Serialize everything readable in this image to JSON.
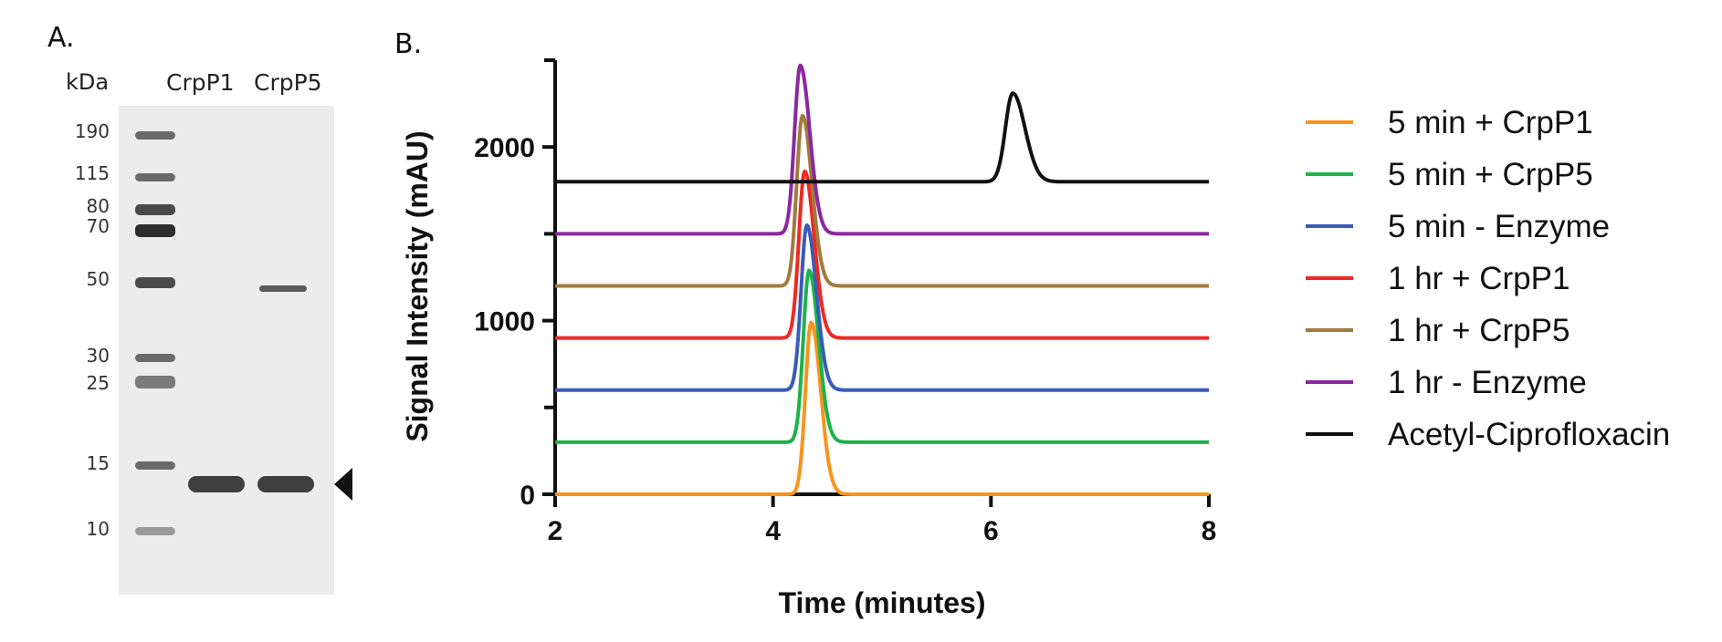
{
  "panel_a": {
    "label": "A.",
    "kda_label": "kDa",
    "lanes": [
      "CrpP1",
      "CrpP5"
    ],
    "ladder": [
      "190",
      "115",
      "80",
      "70",
      "50",
      "30",
      "25",
      "15",
      "10"
    ]
  },
  "panel_b": {
    "label": "B."
  },
  "chart_data": {
    "type": "line",
    "title": "",
    "xlabel": "Time (minutes)",
    "ylabel": "Signal Intensity (mAU)",
    "xlim": [
      2,
      8
    ],
    "ylim": [
      0,
      2500
    ],
    "xticks": [
      2,
      4,
      6,
      8
    ],
    "yticks": [
      0,
      1000,
      2000
    ],
    "grid": false,
    "legend_position": "right",
    "series": [
      {
        "name": "5 min + CrpP1",
        "color": "#f7941d",
        "baseline": 0,
        "peak_time": 4.35,
        "peak_height": 990,
        "peak_width": 0.07
      },
      {
        "name": "5 min + CrpP5",
        "color": "#1db34a",
        "baseline": 300,
        "peak_time": 4.33,
        "peak_height": 990,
        "peak_width": 0.07
      },
      {
        "name": "5 min - Enzyme",
        "color": "#3a5bb8",
        "baseline": 600,
        "peak_time": 4.31,
        "peak_height": 950,
        "peak_width": 0.07
      },
      {
        "name": "1 hr + CrpP1",
        "color": "#ec2a24",
        "baseline": 900,
        "peak_time": 4.29,
        "peak_height": 960,
        "peak_width": 0.07
      },
      {
        "name": "1 hr + CrpP5",
        "color": "#a07a3e",
        "baseline": 1200,
        "peak_time": 4.27,
        "peak_height": 980,
        "peak_width": 0.07
      },
      {
        "name": "1 hr - Enzyme",
        "color": "#8a28a0",
        "baseline": 1500,
        "peak_time": 4.25,
        "peak_height": 970,
        "peak_width": 0.07
      },
      {
        "name": "Acetyl-Ciprofloxacin",
        "color": "#111111",
        "baseline": 1800,
        "peak_time": 6.2,
        "peak_height": 510,
        "peak_width": 0.09
      }
    ]
  }
}
